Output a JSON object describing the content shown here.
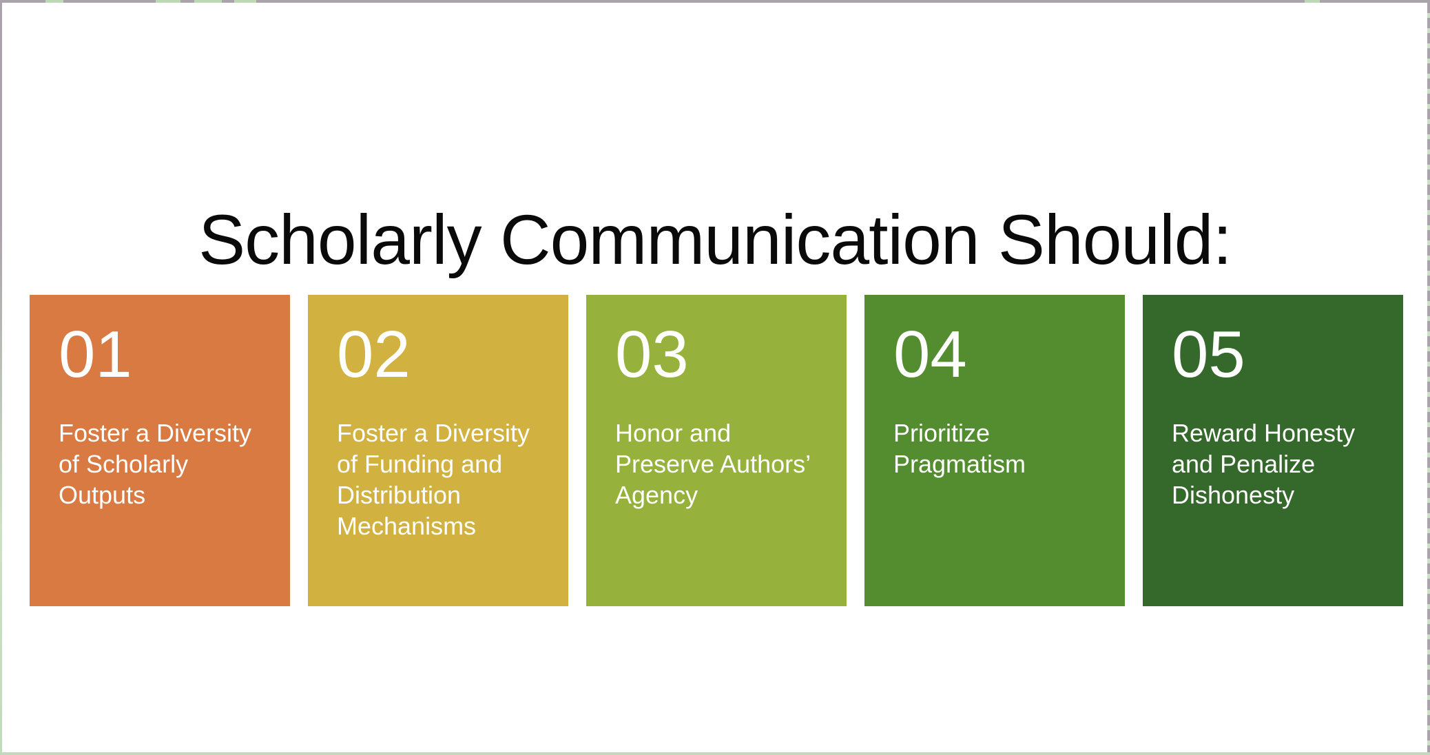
{
  "slide": {
    "title": "Scholarly Communication Should:"
  },
  "cards": [
    {
      "number": "01",
      "text": "Foster a Diversity of Scholarly Outputs",
      "color": "#D87A42"
    },
    {
      "number": "02",
      "text": "Foster a Diversity of Funding and Distribution Mechanisms",
      "color": "#D1B140"
    },
    {
      "number": "03",
      "text": "Honor and Preserve Authors’ Agency",
      "color": "#96B13C"
    },
    {
      "number": "04",
      "text": "Prioritize Pragmatism",
      "color": "#548C30"
    },
    {
      "number": "05",
      "text": "Reward Honesty and Penalize Dishonesty",
      "color": "#35682B"
    }
  ],
  "frame": {
    "edge_gray": "#ABA3AB",
    "edge_green": "#C3D9BC"
  }
}
